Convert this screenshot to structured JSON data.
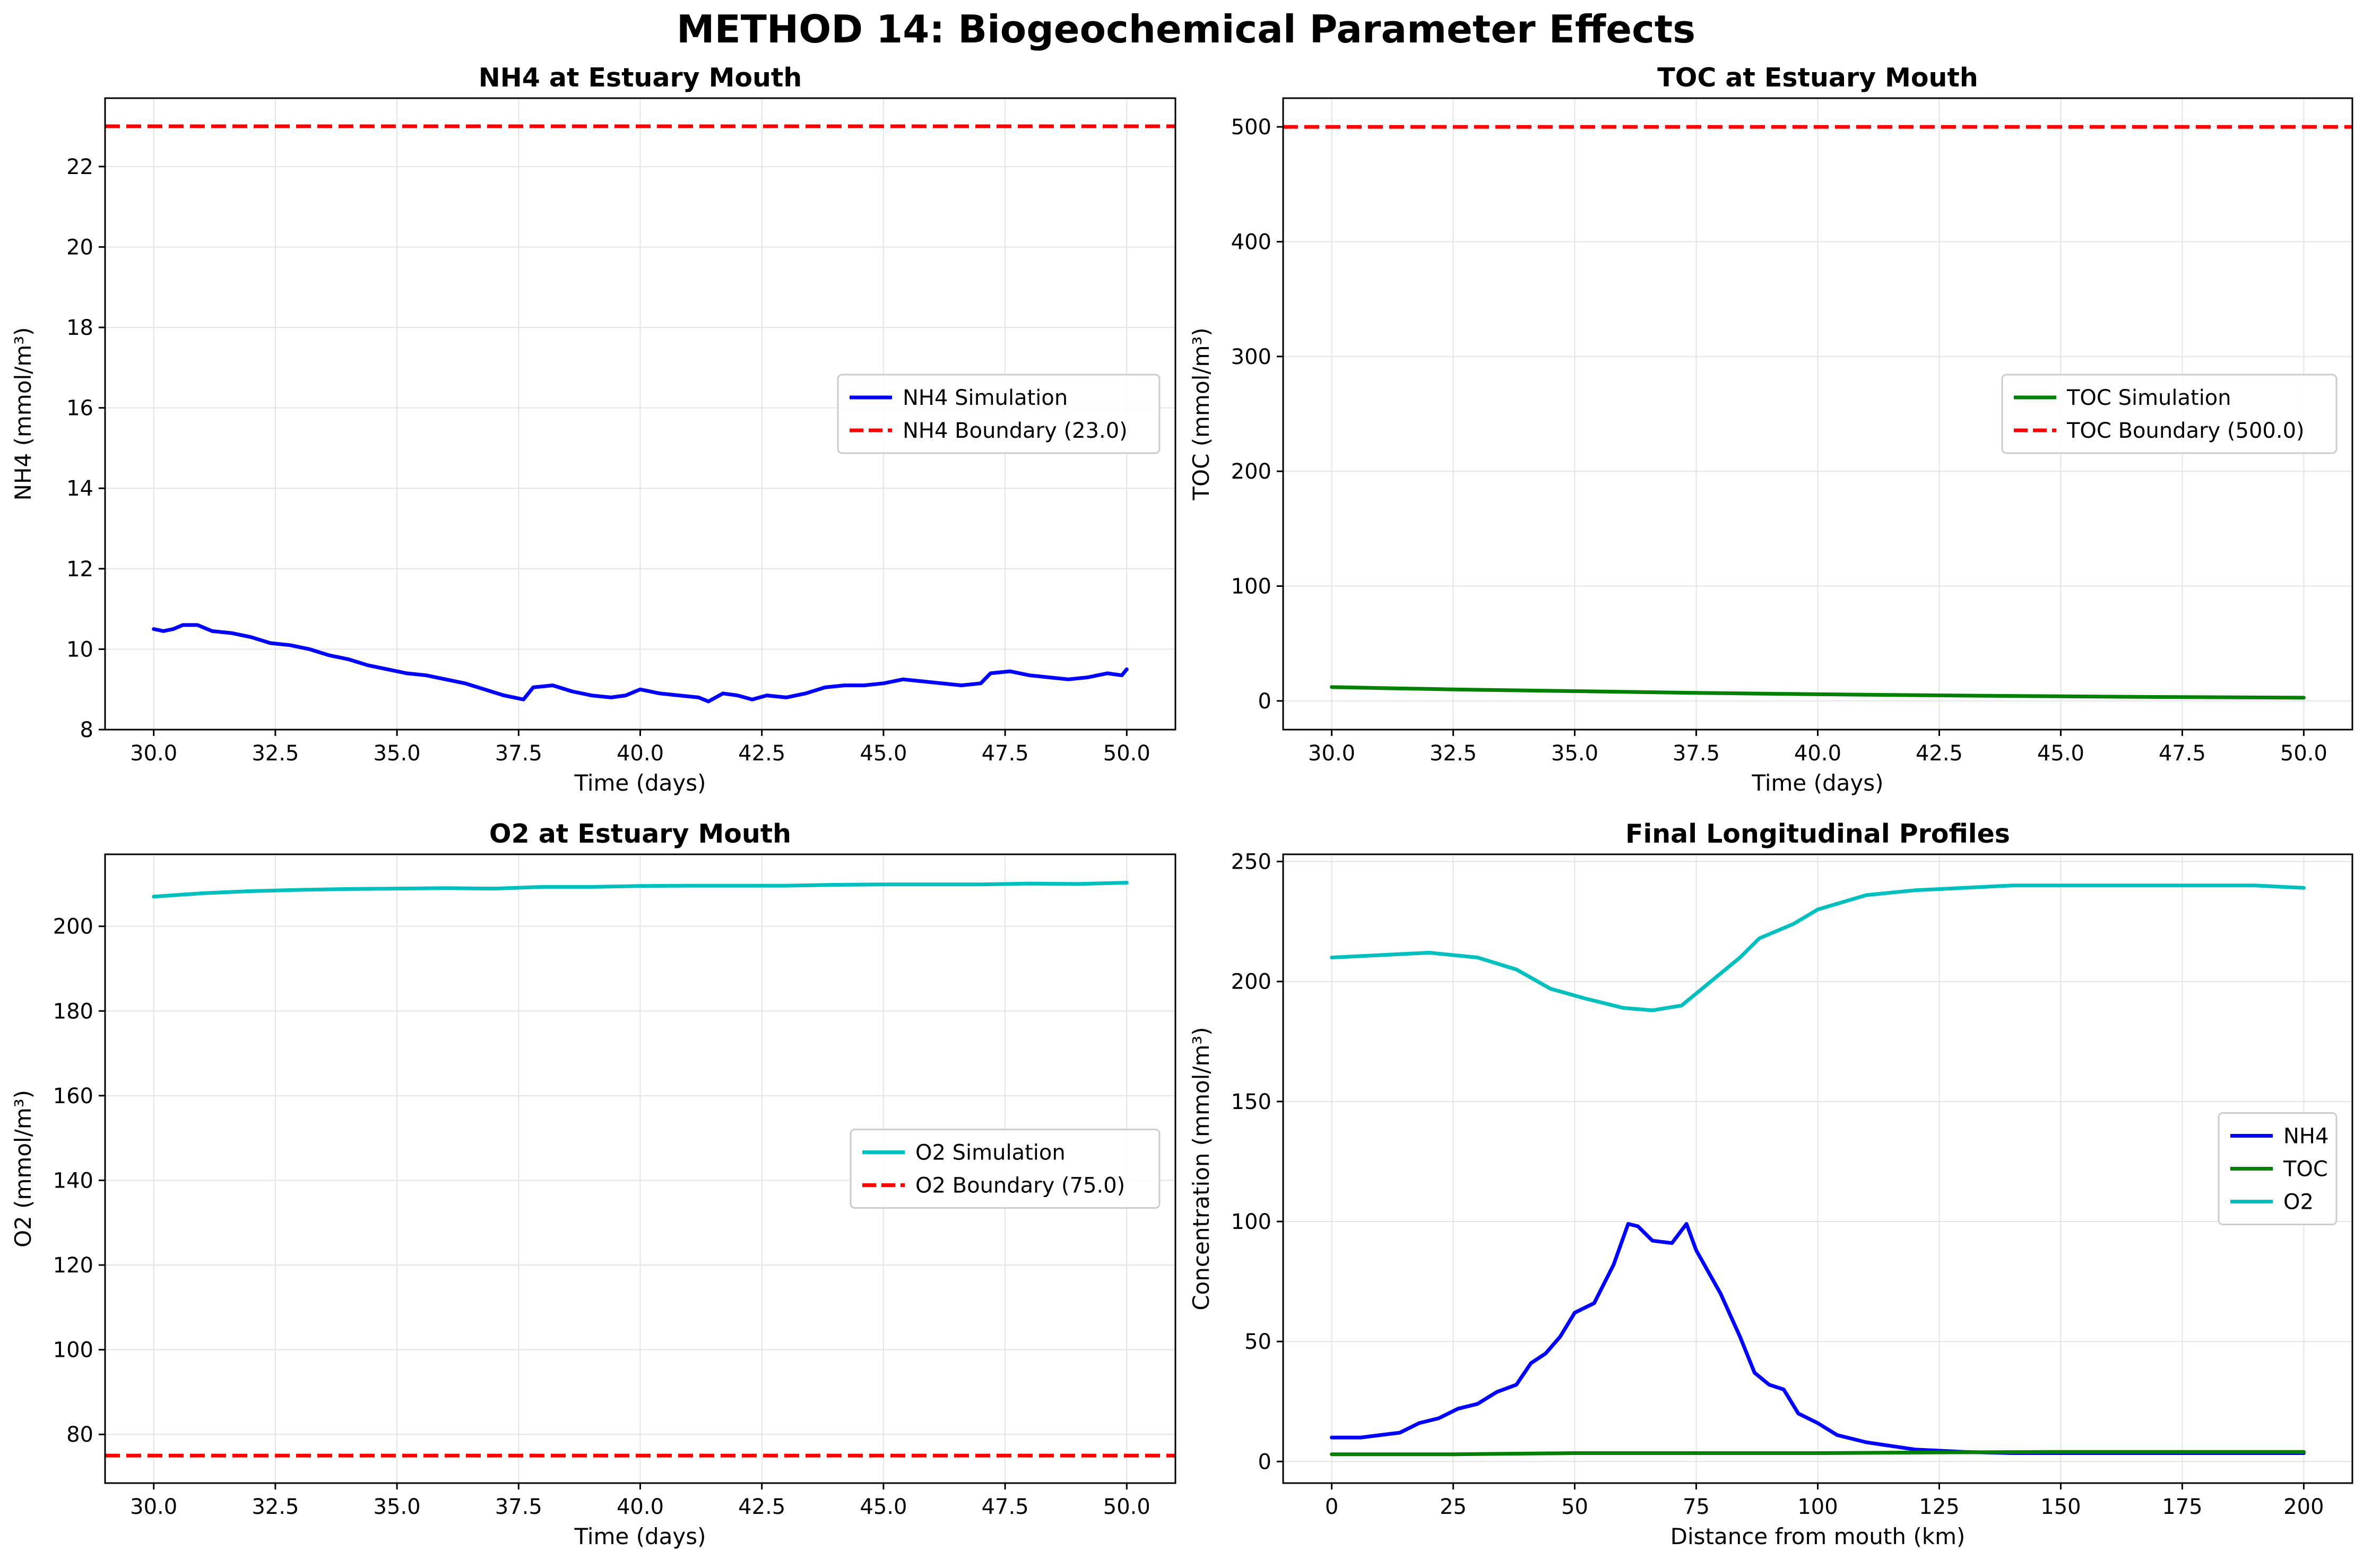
{
  "figure": {
    "suptitle": "METHOD 14: Biogeochemical Parameter Effects"
  },
  "chart_data": [
    {
      "type": "line",
      "title": "NH4 at Estuary Mouth",
      "xlabel": "Time (days)",
      "ylabel": "NH4 (mmol/m³)",
      "xlim": [
        29.0,
        51.0
      ],
      "ylim": [
        8.0,
        23.7
      ],
      "xticks": [
        "30.0",
        "32.5",
        "35.0",
        "37.5",
        "40.0",
        "42.5",
        "45.0",
        "47.5",
        "50.0"
      ],
      "yticks": [
        "8",
        "10",
        "12",
        "14",
        "16",
        "18",
        "20",
        "22"
      ],
      "grid": true,
      "legend": "center-right",
      "series": [
        {
          "name": "NH4 Simulation",
          "color": "#0000ff",
          "style": "solid",
          "x": [
            30.0,
            30.2,
            30.4,
            30.6,
            30.9,
            31.2,
            31.6,
            32.0,
            32.4,
            32.8,
            33.2,
            33.6,
            34.0,
            34.4,
            34.8,
            35.2,
            35.6,
            36.0,
            36.4,
            36.8,
            37.2,
            37.6,
            37.8,
            38.2,
            38.6,
            39.0,
            39.4,
            39.7,
            40.0,
            40.4,
            40.8,
            41.2,
            41.4,
            41.7,
            42.0,
            42.3,
            42.6,
            43.0,
            43.4,
            43.8,
            44.2,
            44.6,
            45.0,
            45.4,
            45.8,
            46.2,
            46.6,
            47.0,
            47.2,
            47.6,
            48.0,
            48.4,
            48.8,
            49.2,
            49.6,
            49.9,
            50.0
          ],
          "y": [
            10.5,
            10.45,
            10.5,
            10.6,
            10.6,
            10.45,
            10.4,
            10.3,
            10.15,
            10.1,
            10.0,
            9.85,
            9.75,
            9.6,
            9.5,
            9.4,
            9.35,
            9.25,
            9.15,
            9.0,
            8.85,
            8.75,
            9.05,
            9.1,
            8.95,
            8.85,
            8.8,
            8.85,
            9.0,
            8.9,
            8.85,
            8.8,
            8.7,
            8.9,
            8.85,
            8.75,
            8.85,
            8.8,
            8.9,
            9.05,
            9.1,
            9.1,
            9.15,
            9.25,
            9.2,
            9.15,
            9.1,
            9.15,
            9.4,
            9.45,
            9.35,
            9.3,
            9.25,
            9.3,
            9.4,
            9.35,
            9.5
          ]
        },
        {
          "name": "NH4 Boundary (23.0)",
          "color": "#ff0000",
          "style": "dashed",
          "hline": 23.0
        }
      ]
    },
    {
      "type": "line",
      "title": "TOC at Estuary Mouth",
      "xlabel": "Time (days)",
      "ylabel": "TOC (mmol/m³)",
      "xlim": [
        29.0,
        51.0
      ],
      "ylim": [
        -25,
        525
      ],
      "xticks": [
        "30.0",
        "32.5",
        "35.0",
        "37.5",
        "40.0",
        "42.5",
        "45.0",
        "47.5",
        "50.0"
      ],
      "yticks": [
        "0",
        "100",
        "200",
        "300",
        "400",
        "500"
      ],
      "grid": true,
      "legend": "center-right",
      "series": [
        {
          "name": "TOC Simulation",
          "color": "#008000",
          "style": "solid",
          "x": [
            30.0,
            32.5,
            35.0,
            37.5,
            40.0,
            42.5,
            45.0,
            47.5,
            50.0
          ],
          "y": [
            12.0,
            10.0,
            8.5,
            7.0,
            5.8,
            4.8,
            4.0,
            3.3,
            2.8
          ]
        },
        {
          "name": "TOC Boundary (500.0)",
          "color": "#ff0000",
          "style": "dashed",
          "hline": 500.0
        }
      ]
    },
    {
      "type": "line",
      "title": "O2 at Estuary Mouth",
      "xlabel": "Time (days)",
      "ylabel": "O2 (mmol/m³)",
      "xlim": [
        29.0,
        51.0
      ],
      "ylim": [
        68.5,
        217
      ],
      "xticks": [
        "30.0",
        "32.5",
        "35.0",
        "37.5",
        "40.0",
        "42.5",
        "45.0",
        "47.5",
        "50.0"
      ],
      "yticks": [
        "80",
        "100",
        "120",
        "140",
        "160",
        "180",
        "200"
      ],
      "grid": true,
      "legend": "center-right",
      "series": [
        {
          "name": "O2 Simulation",
          "color": "#00bfbf",
          "style": "solid",
          "x": [
            30.0,
            31.0,
            32.0,
            33.0,
            34.0,
            35.0,
            36.0,
            37.0,
            38.0,
            39.0,
            40.0,
            41.0,
            42.0,
            43.0,
            44.0,
            45.0,
            46.0,
            47.0,
            48.0,
            49.0,
            50.0
          ],
          "y": [
            207.0,
            207.8,
            208.3,
            208.6,
            208.8,
            208.9,
            209.0,
            208.9,
            209.3,
            209.3,
            209.5,
            209.6,
            209.6,
            209.6,
            209.8,
            209.9,
            209.9,
            209.9,
            210.1,
            210.0,
            210.3
          ]
        },
        {
          "name": "O2 Boundary (75.0)",
          "color": "#ff0000",
          "style": "dashed",
          "hline": 75.0
        }
      ]
    },
    {
      "type": "line",
      "title": "Final Longitudinal Profiles",
      "xlabel": "Distance from mouth (km)",
      "ylabel": "Concentration (mmol/m³)",
      "xlim": [
        -10,
        210
      ],
      "ylim": [
        -9,
        253
      ],
      "xticks": [
        "0",
        "25",
        "50",
        "75",
        "100",
        "125",
        "150",
        "175",
        "200"
      ],
      "yticks": [
        "0",
        "50",
        "100",
        "150",
        "200",
        "250"
      ],
      "grid": true,
      "legend": "center-right",
      "series": [
        {
          "name": "NH4",
          "color": "#0000ff",
          "style": "solid",
          "x": [
            0,
            6,
            10,
            14,
            18,
            22,
            26,
            30,
            34,
            38,
            41,
            44,
            47,
            50,
            54,
            58,
            61,
            63,
            66,
            70,
            73,
            75,
            80,
            84,
            87,
            90,
            93,
            96,
            100,
            104,
            110,
            120,
            130,
            140,
            160,
            180,
            200
          ],
          "y": [
            10,
            10,
            11,
            12,
            16,
            18,
            22,
            24,
            29,
            32,
            41,
            45,
            52,
            62,
            66,
            82,
            99,
            98,
            92,
            91,
            99,
            88,
            70,
            52,
            37,
            32,
            30,
            20,
            16,
            11,
            8,
            5,
            4,
            3.5,
            3.5,
            3.5,
            3.5
          ]
        },
        {
          "name": "TOC",
          "color": "#008000",
          "style": "solid",
          "x": [
            0,
            25,
            50,
            75,
            100,
            125,
            150,
            175,
            200
          ],
          "y": [
            3,
            3,
            3.5,
            3.5,
            3.5,
            3.8,
            4,
            4,
            4
          ]
        },
        {
          "name": "O2",
          "color": "#00bfbf",
          "style": "solid",
          "x": [
            0,
            10,
            20,
            30,
            38,
            45,
            52,
            60,
            66,
            72,
            78,
            84,
            88,
            95,
            100,
            110,
            120,
            130,
            140,
            160,
            180,
            190,
            200
          ],
          "y": [
            210,
            211,
            212,
            210,
            205,
            197,
            193,
            189,
            188,
            190,
            200,
            210,
            218,
            224,
            230,
            236,
            238,
            239,
            240,
            240,
            240,
            240,
            239
          ]
        }
      ]
    }
  ]
}
